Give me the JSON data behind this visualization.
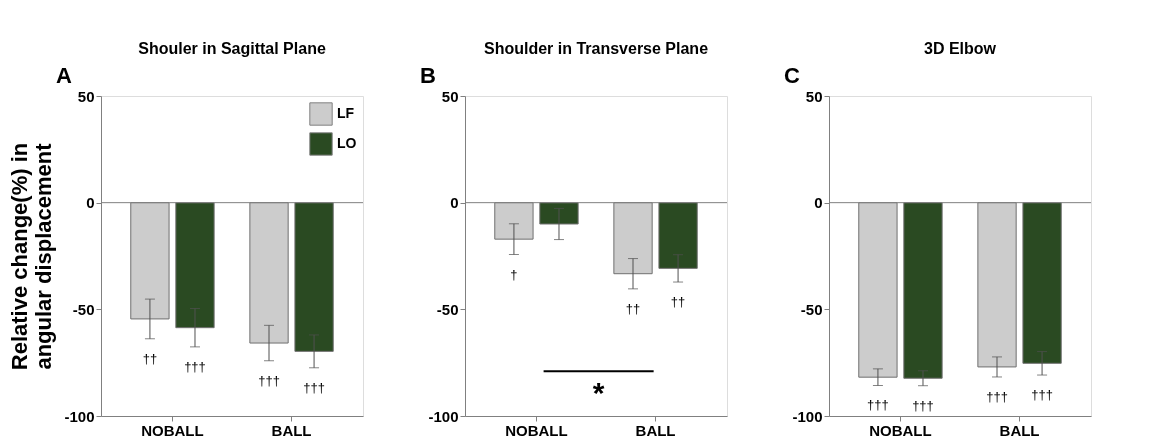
{
  "chart_data": [
    {
      "type": "bar",
      "title": "Shouler in Sagittal Plane",
      "ylabel": "Relative change(%) in\nangular displacement",
      "annotations": [
        "A"
      ],
      "categories": [
        "NOBALL",
        "BALL"
      ],
      "ylim": [
        -100,
        50
      ],
      "yticks": [
        -100,
        -50,
        0,
        50
      ],
      "legend": "top right",
      "grid": false,
      "ref_lines": [
        {
          "axis": "y",
          "value": 0,
          "color": "#808080"
        }
      ],
      "series": [
        {
          "name": "LF",
          "color": "#cccccc",
          "values": [
            -54.5,
            -65.8
          ],
          "errors": [
            9.3,
            8.3
          ],
          "value_labels": [
            "††",
            "†††"
          ]
        },
        {
          "name": "LO",
          "color": "#2a4a22",
          "values": [
            -58.6,
            -69.7
          ],
          "errors": [
            9,
            7.7
          ],
          "value_labels": [
            "†††",
            "†††"
          ]
        }
      ]
    },
    {
      "type": "bar",
      "title": "Shoulder in Transverse Plane",
      "annotations": [
        "B",
        "*"
      ],
      "categories": [
        "NOBALL",
        "BALL"
      ],
      "ylim": [
        -100,
        50
      ],
      "yticks": [
        -100,
        -50,
        0,
        50
      ],
      "grid": false,
      "ref_lines": [
        {
          "axis": "y",
          "value": 0,
          "color": "#808080"
        }
      ],
      "series": [
        {
          "color": "#cccccc",
          "values": [
            -17.1,
            -33.3
          ],
          "errors": [
            7.2,
            7.1
          ],
          "value_labels": [
            "†",
            "††"
          ]
        },
        {
          "color": "#2a4a22",
          "values": [
            -10,
            -30.8
          ],
          "errors": [
            7.3,
            6.4
          ],
          "value_labels": [
            null,
            "††"
          ]
        }
      ]
    },
    {
      "type": "bar",
      "title": "3D Elbow",
      "annotations": [
        "C"
      ],
      "categories": [
        "NOBALL",
        "BALL"
      ],
      "ylim": [
        -100,
        50
      ],
      "yticks": [
        -100,
        -50,
        0,
        50
      ],
      "grid": false,
      "ref_lines": [
        {
          "axis": "y",
          "value": 0,
          "color": "#808080"
        }
      ],
      "series": [
        {
          "color": "#cccccc",
          "values": [
            -81.8,
            -77
          ],
          "errors": [
            3.9,
            4.7
          ],
          "value_labels": [
            "†††",
            "†††"
          ]
        },
        {
          "color": "#2a4a22",
          "values": [
            -82.3,
            -75.3
          ],
          "errors": [
            3.5,
            5.5
          ],
          "value_labels": [
            "†††",
            "†††"
          ]
        }
      ]
    }
  ]
}
